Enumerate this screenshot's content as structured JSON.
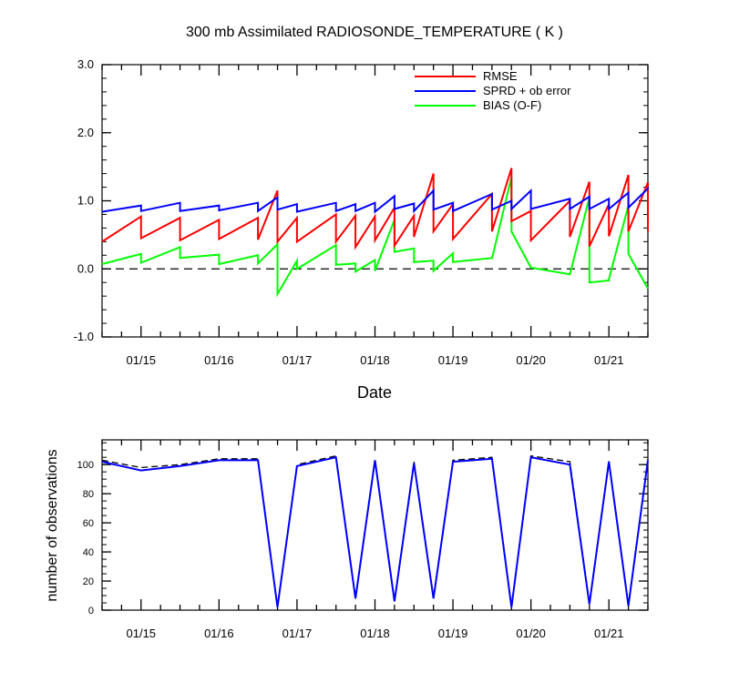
{
  "chart_data": [
    {
      "type": "line",
      "title": "300 mb Assimilated RADIOSONDE_TEMPERATURE ( K )",
      "xlabel": "Date",
      "ylabel": "",
      "xlim": [
        14.5,
        21.5
      ],
      "ylim": [
        -1.0,
        3.0
      ],
      "y_ticks": [
        -1.0,
        0.0,
        1.0,
        2.0,
        3.0
      ],
      "y_tick_labels": [
        "-1.0",
        "0.0",
        "1.0",
        "2.0",
        "3.0"
      ],
      "x_ticks": [
        15,
        16,
        17,
        18,
        19,
        20,
        21
      ],
      "x_tick_labels": [
        "01/15",
        "01/16",
        "01/17",
        "01/18",
        "01/19",
        "01/20",
        "01/21"
      ],
      "zero_line": "dashed",
      "legend_position": "top-right",
      "series": [
        {
          "name": "RMSE",
          "color": "#ff0000",
          "x": [
            14.5,
            15.0,
            15.0,
            15.5,
            15.5,
            16.0,
            16.0,
            16.5,
            16.5,
            16.75,
            16.75,
            17.0,
            17.0,
            17.5,
            17.5,
            17.75,
            17.75,
            18.0,
            18.0,
            18.25,
            18.25,
            18.5,
            18.5,
            18.75,
            18.75,
            19.0,
            19.0,
            19.5,
            19.5,
            19.75,
            19.75,
            20.0,
            20.0,
            20.5,
            20.5,
            20.75,
            20.75,
            21.0,
            21.0,
            21.25,
            21.25,
            21.5,
            21.5
          ],
          "y": [
            0.4,
            0.77,
            0.45,
            0.75,
            0.42,
            0.72,
            0.44,
            0.75,
            0.43,
            1.15,
            0.4,
            0.75,
            0.4,
            0.8,
            0.4,
            0.78,
            0.32,
            0.77,
            0.42,
            0.9,
            0.34,
            0.78,
            0.47,
            1.4,
            0.55,
            0.95,
            0.44,
            1.1,
            0.55,
            1.48,
            0.7,
            0.85,
            0.42,
            1.0,
            0.47,
            1.28,
            0.33,
            0.95,
            0.48,
            1.38,
            0.55,
            1.27,
            0.55
          ]
        },
        {
          "name": "SPRD + ob error",
          "color": "#0000ff",
          "x": [
            14.5,
            15.0,
            15.0,
            15.5,
            15.5,
            16.0,
            16.0,
            16.5,
            16.5,
            16.75,
            16.75,
            17.0,
            17.0,
            17.5,
            17.5,
            17.75,
            17.75,
            18.0,
            18.0,
            18.25,
            18.25,
            18.5,
            18.5,
            18.75,
            18.75,
            19.0,
            19.0,
            19.5,
            19.5,
            19.75,
            19.75,
            20.0,
            20.0,
            20.5,
            20.5,
            20.75,
            20.75,
            21.0,
            21.0,
            21.25,
            21.25,
            21.5,
            21.5
          ],
          "y": [
            0.84,
            0.93,
            0.85,
            0.97,
            0.85,
            0.93,
            0.86,
            0.97,
            0.85,
            1.05,
            0.87,
            0.95,
            0.84,
            0.97,
            0.85,
            0.95,
            0.85,
            0.97,
            0.84,
            1.07,
            0.88,
            0.96,
            0.85,
            1.15,
            0.87,
            0.97,
            0.85,
            1.1,
            0.87,
            1.0,
            0.88,
            1.15,
            0.88,
            1.03,
            0.88,
            1.06,
            0.88,
            1.03,
            0.88,
            1.12,
            0.9,
            1.18,
            1.17
          ]
        },
        {
          "name": "BIAS (O-F)",
          "color": "#00ff00",
          "x": [
            14.5,
            15.0,
            15.0,
            15.5,
            15.5,
            16.0,
            16.0,
            16.5,
            16.5,
            16.75,
            16.75,
            17.0,
            17.0,
            17.5,
            17.5,
            17.75,
            17.75,
            18.0,
            18.0,
            18.25,
            18.25,
            18.5,
            18.5,
            18.75,
            18.75,
            19.0,
            19.0,
            19.5,
            19.5,
            19.75,
            19.75,
            20.0,
            20.0,
            20.5,
            20.5,
            20.75,
            20.75,
            21.0,
            21.0,
            21.25,
            21.25,
            21.5
          ],
          "y": [
            0.07,
            0.22,
            0.09,
            0.32,
            0.16,
            0.21,
            0.07,
            0.2,
            0.08,
            0.36,
            -0.37,
            0.12,
            0.0,
            0.35,
            0.06,
            0.08,
            -0.04,
            0.13,
            -0.03,
            0.72,
            0.25,
            0.3,
            0.1,
            0.12,
            -0.03,
            0.23,
            0.1,
            0.16,
            0.15,
            1.35,
            0.55,
            0.02,
            0.02,
            -0.08,
            -0.08,
            1.05,
            -0.2,
            -0.17,
            -0.15,
            0.93,
            0.22,
            -0.29
          ]
        }
      ]
    },
    {
      "type": "line",
      "title": "",
      "xlabel": "",
      "ylabel": "number of observations",
      "xlim": [
        14.5,
        21.5
      ],
      "ylim": [
        0,
        117
      ],
      "y_ticks": [
        0,
        20,
        40,
        60,
        80,
        100
      ],
      "y_tick_labels": [
        "0",
        "20",
        "40",
        "60",
        "80",
        "100"
      ],
      "x_ticks": [
        15,
        16,
        17,
        18,
        19,
        20,
        21
      ],
      "x_tick_labels": [
        "01/15",
        "01/16",
        "01/17",
        "01/18",
        "01/19",
        "01/20",
        "01/21"
      ],
      "series": [
        {
          "style": "solid",
          "color": "#0000ff",
          "x": [
            14.5,
            15.0,
            15.5,
            16.0,
            16.5,
            16.75,
            17.0,
            17.5,
            17.75,
            18.0,
            18.25,
            18.5,
            18.75,
            19.0,
            19.5,
            19.75,
            20.0,
            20.5,
            20.75,
            21.0,
            21.25,
            21.5
          ],
          "y": [
            102,
            96,
            99,
            103,
            103,
            2,
            99,
            105,
            8,
            103,
            6,
            101,
            8,
            102,
            104,
            2,
            105,
            100,
            4,
            102,
            3,
            103
          ]
        },
        {
          "style": "dashed",
          "color": "#000000",
          "x": [
            14.5,
            15.0,
            15.5,
            16.0,
            16.5,
            16.75,
            17.0,
            17.5,
            17.75,
            18.0,
            18.25,
            18.5,
            18.75,
            19.0,
            19.5,
            19.75,
            20.0,
            20.5,
            20.75,
            21.0,
            21.25,
            21.5
          ],
          "y": [
            103,
            98,
            100,
            104,
            104,
            3,
            100,
            106,
            9,
            104,
            7,
            102,
            9,
            103,
            105,
            3,
            106,
            102,
            5,
            103,
            4,
            104
          ]
        }
      ]
    }
  ]
}
